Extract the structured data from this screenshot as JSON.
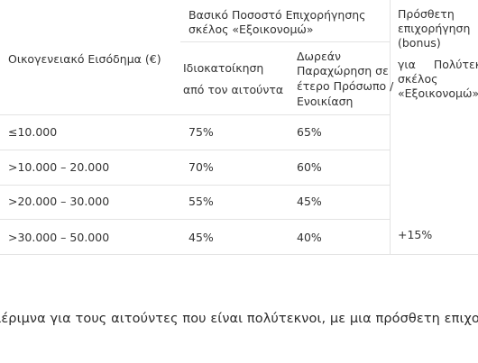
{
  "table": {
    "header": {
      "income_label": "Οικογενειακό Εισόδημα (€)",
      "basic_rate_line1": "Βασικό Ποσοστό Επιχορήγησης",
      "basic_rate_line2": "σκέλος «Εξοικονομώ»",
      "owner_line1": "Ιδιοκατοίκηση",
      "owner_line2": "από τον αιτούντα",
      "free_line1": "Δωρεάν",
      "free_line2": "Παραχώρηση σε",
      "free_line3": "έτερο Πρόσωπο /",
      "free_line4": "Ενοικίαση",
      "bonus_line1": "Πρόσθετη",
      "bonus_line2": "επιχορήγηση",
      "bonus_line3": "(bonus)",
      "bonus_line4": "για Πολύτεκνο",
      "bonus_line5": "σκέλος",
      "bonus_line6": "«Εξοικονομώ»"
    },
    "rows": [
      {
        "income": "≤10.000",
        "owner": "75%",
        "free": "65%"
      },
      {
        "income": ">10.000 – 20.000",
        "owner": "70%",
        "free": "60%"
      },
      {
        "income": ">20.000 – 30.000",
        "owner": "55%",
        "free": "45%"
      },
      {
        "income": ">30.000 – 50.000",
        "owner": "45%",
        "free": "40%"
      }
    ],
    "bonus_value": "+15%"
  },
  "paragraph": "μέριμνα για τους αιτούντες που είναι πολύτεκνοι, με μια πρόσθετη επιχο"
}
